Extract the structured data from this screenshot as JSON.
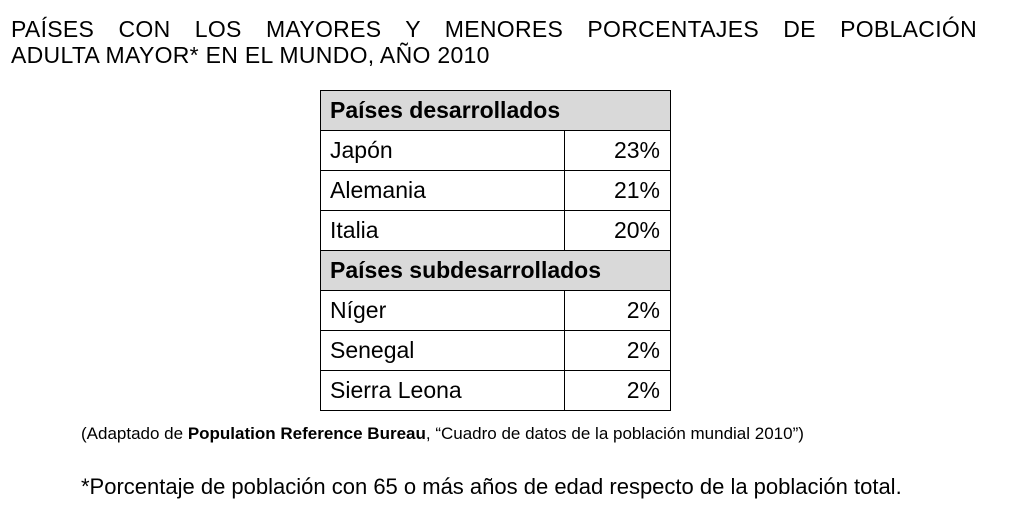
{
  "title": {
    "line1": "PAÍSES CON LOS MAYORES Y MENORES PORCENTAJES DE POBLACIÓN",
    "line2": "ADULTA MAYOR* EN EL MUNDO, AÑO 2010"
  },
  "table": {
    "developed_header": "Países desarrollados",
    "developed_rows": [
      {
        "country": "Japón",
        "value": "23%"
      },
      {
        "country": "Alemania",
        "value": "21%"
      },
      {
        "country": "Italia",
        "value": "20%"
      }
    ],
    "underdeveloped_header": "Países subdesarrollados",
    "underdeveloped_rows": [
      {
        "country": "Níger",
        "value": "2%"
      },
      {
        "country": "Senegal",
        "value": "2%"
      },
      {
        "country": "Sierra Leona",
        "value": "2%"
      }
    ]
  },
  "source": {
    "prefix": "(Adaptado de ",
    "bold": "Population Reference Bureau",
    "suffix": ", “Cuadro de datos de la población mundial 2010”)"
  },
  "note": "*Porcentaje de población con 65 o más años de edad respecto de la población total."
}
